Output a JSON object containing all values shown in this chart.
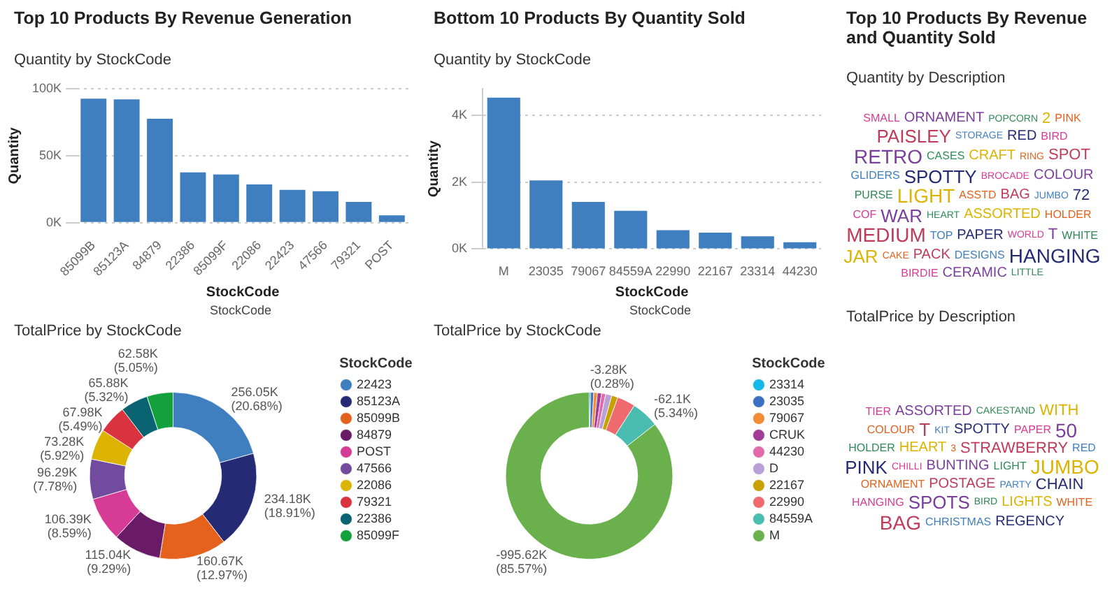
{
  "chart_data": [
    {
      "type": "bar",
      "title": "Top 10 Products By Revenue Generation",
      "subtitle": "Quantity by StockCode",
      "xlabel": "StockCode",
      "ylabel": "Quantity",
      "categories": [
        "85099B",
        "85123A",
        "84879",
        "22386",
        "85099F",
        "22086",
        "22423",
        "47566",
        "79321",
        "POST"
      ],
      "values": [
        92500,
        92000,
        77500,
        37500,
        36000,
        28500,
        24500,
        23500,
        15500,
        5500
      ],
      "color": "#3f7fc0",
      "ylim": [
        0,
        100000
      ],
      "yticks": [
        {
          "value": 0,
          "label": "0K"
        },
        {
          "value": 50000,
          "label": "50K"
        },
        {
          "value": 100000,
          "label": "100K"
        }
      ],
      "grid": "y"
    },
    {
      "type": "bar",
      "title": "Bottom 10 Products By Quantity Sold",
      "subtitle": "Quantity by StockCode",
      "xlabel": "StockCode",
      "ylabel": "Quantity",
      "categories": [
        "M",
        "23035",
        "79067",
        "84559A",
        "22990",
        "22167",
        "23314",
        "44230"
      ],
      "values": [
        4530,
        2050,
        1410,
        1140,
        560,
        490,
        380,
        200
      ],
      "color": "#3f7fc0",
      "ylim": [
        0,
        4800
      ],
      "yticks": [
        {
          "value": 0,
          "label": "0K"
        },
        {
          "value": 2000,
          "label": "2K"
        },
        {
          "value": 4000,
          "label": "4K"
        }
      ],
      "grid": "y"
    },
    {
      "type": "other",
      "title": "Top 10 Products By Revenue and Quantity Sold",
      "subtitle": "Quantity by Description",
      "annotations": [
        "SMALL",
        "ORNAMENT",
        "POPCORN",
        "2",
        "PINK",
        "PAISLEY",
        "STORAGE",
        "RED",
        "BIRD",
        "RETRO",
        "CASES",
        "CRAFT",
        "RING",
        "SPOT",
        "GLIDERS",
        "SPOTTY",
        "BROCADE",
        "COLOUR",
        "PURSE",
        "LIGHT",
        "ASSTD",
        "BAG",
        "JUMBO",
        "72",
        "COF",
        "WAR",
        "HEART",
        "ASSORTED",
        "HOLDER",
        "MEDIUM",
        "TOP",
        "PAPER",
        "WORLD",
        "T",
        "WHITE",
        "JAR",
        "CAKE",
        "PACK",
        "DESIGNS",
        "HANGING",
        "BIRDIE",
        "CERAMIC",
        "LITTLE"
      ]
    },
    {
      "type": "donut",
      "title": "TotalPrice by StockCode",
      "legend_title": "StockCode",
      "legend": "right",
      "annotations": [
        "StockCode"
      ],
      "categories": [
        "22423",
        "85123A",
        "85099B",
        "84879",
        "POST",
        "47566",
        "22086",
        "79321",
        "22386",
        "85099F"
      ],
      "values": [
        256050,
        234180,
        160670,
        115040,
        106390,
        96290,
        73280,
        67980,
        65880,
        62580
      ],
      "colors": [
        "#3f7fc0",
        "#242a74",
        "#e4621c",
        "#6a1b67",
        "#d63b96",
        "#734b9e",
        "#dcb400",
        "#d93340",
        "#0a6370",
        "#14a03c"
      ],
      "value_labels": [
        "256.05K (20.68%)",
        "234.18K (18.91%)",
        "160.67K (12.97%)",
        "115.04K (9.29%)",
        "106.39K (8.59%)",
        "96.29K (7.78%)",
        "73.28K (5.92%)",
        "67.98K (5.49%)",
        "65.88K (5.32%)",
        "62.58K (5.05%)"
      ]
    },
    {
      "type": "donut",
      "title": "TotalPrice by StockCode",
      "legend_title": "StockCode",
      "legend": "right",
      "annotations": [
        "StockCode"
      ],
      "categories": [
        "23314",
        "23035",
        "79067",
        "CRUK",
        "44230",
        "D",
        "22167",
        "22990",
        "84559A",
        "M"
      ],
      "values": [
        0.28,
        0.6,
        0.7,
        0.8,
        0.8,
        1.2,
        1.2,
        3.51,
        5.34,
        85.57
      ],
      "colors": [
        "#17b8e8",
        "#3c6fc0",
        "#f28c35",
        "#a03c94",
        "#e26aa8",
        "#b9a0d8",
        "#c8a000",
        "#ee6a6e",
        "#4bbcb0",
        "#6ab04c"
      ],
      "value_labels": [
        "-3.28K (0.28%)",
        null,
        null,
        null,
        null,
        null,
        null,
        null,
        "-62.1K (5.34%)",
        "-995.62K (85.57%)"
      ]
    },
    {
      "type": "other",
      "title": "TotalPrice by Description",
      "annotations": [
        "TIER",
        "ASSORTED",
        "CAKESTAND",
        "WITH",
        "COLOUR",
        "T",
        "KIT",
        "SPOTTY",
        "PAPER",
        "50",
        "HOLDER",
        "HEART",
        "3",
        "STRAWBERRY",
        "RED",
        "PINK",
        "CHILLI",
        "BUNTING",
        "LIGHT",
        "JUMBO",
        "ORNAMENT",
        "POSTAGE",
        "PARTY",
        "CHAIN",
        "HANGING",
        "SPOTS",
        "BIRD",
        "LIGHTS",
        "WHITE",
        "BAG",
        "CHRISTMAS",
        "REGENCY"
      ]
    }
  ]
}
